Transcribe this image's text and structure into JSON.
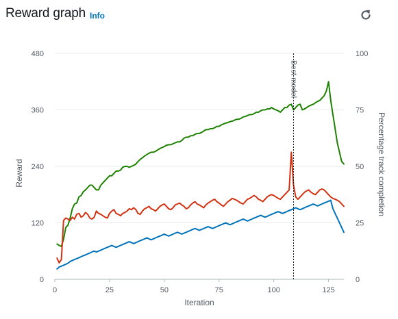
{
  "header": {
    "title": "Reward graph",
    "info_label": "Info",
    "refresh_icon": "refresh-icon"
  },
  "chart_data": {
    "type": "line",
    "xlabel": "Iteration",
    "ylabel_left": "Reward",
    "ylabel_right": "Percentage track completion",
    "x_ticks": [
      "0",
      "25",
      "50",
      "75",
      "100",
      "125"
    ],
    "y_left_ticks": [
      "0",
      "120",
      "240",
      "360",
      "480"
    ],
    "y_right_ticks": [
      "0",
      "25",
      "50",
      "75",
      "100"
    ],
    "xlim": [
      0,
      132
    ],
    "ylim_left": [
      0,
      480
    ],
    "ylim_right": [
      0,
      100
    ],
    "best_model_iteration": 109,
    "best_model_label": "Best model",
    "colors": {
      "green": "#1d8102",
      "red": "#d13212",
      "blue": "#0073bb",
      "grid": "#eaeded",
      "axis_text": "#545b64"
    },
    "series": [
      {
        "color": "green",
        "axis": "left",
        "values": [
          75,
          72,
          70,
          85,
          110,
          115,
          130,
          150,
          160,
          162,
          175,
          178,
          186,
          190,
          195,
          200,
          200,
          195,
          190,
          190,
          200,
          205,
          210,
          215,
          220,
          220,
          225,
          230,
          230,
          232,
          238,
          240,
          240,
          238,
          240,
          242,
          245,
          250,
          255,
          258,
          262,
          265,
          268,
          270,
          270,
          272,
          275,
          278,
          280,
          282,
          285,
          286,
          286,
          288,
          290,
          292,
          292,
          295,
          300,
          302,
          302,
          305,
          305,
          308,
          310,
          310,
          312,
          315,
          318,
          318,
          320,
          320,
          322,
          325,
          325,
          328,
          330,
          332,
          333,
          335,
          336,
          338,
          340,
          340,
          342,
          345,
          346,
          348,
          350,
          350,
          352,
          355,
          355,
          358,
          360,
          360,
          362,
          362,
          365,
          362,
          360,
          358,
          355,
          360,
          365,
          365,
          370,
          372,
          360,
          365,
          370,
          372,
          360,
          362,
          365,
          368,
          370,
          372,
          375,
          378,
          380,
          385,
          390,
          400,
          420,
          380,
          350,
          320,
          290,
          270,
          250,
          245
        ]
      },
      {
        "color": "red",
        "axis": "left",
        "values": [
          45,
          35,
          42,
          125,
          130,
          128,
          125,
          132,
          128,
          138,
          140,
          132,
          135,
          142,
          138,
          130,
          128,
          132,
          145,
          140,
          138,
          135,
          132,
          130,
          140,
          145,
          148,
          140,
          138,
          135,
          140,
          142,
          145,
          150,
          148,
          152,
          148,
          140,
          138,
          145,
          150,
          152,
          155,
          150,
          148,
          145,
          150,
          155,
          158,
          160,
          155,
          150,
          148,
          152,
          158,
          160,
          162,
          158,
          155,
          150,
          152,
          158,
          162,
          165,
          160,
          158,
          155,
          152,
          158,
          162,
          165,
          168,
          170,
          165,
          162,
          158,
          155,
          160,
          165,
          168,
          172,
          170,
          168,
          165,
          162,
          160,
          165,
          170,
          172,
          175,
          178,
          175,
          170,
          168,
          165,
          170,
          175,
          178,
          180,
          178,
          175,
          172,
          170,
          175,
          180,
          185,
          190,
          270,
          200,
          175,
          170,
          175,
          180,
          185,
          188,
          190,
          185,
          182,
          180,
          185,
          190,
          192,
          190,
          185,
          180,
          175,
          172,
          170,
          168,
          165,
          160,
          155
        ]
      },
      {
        "color": "blue",
        "axis": "left",
        "values": [
          22,
          26,
          28,
          30,
          32,
          34,
          38,
          40,
          42,
          44,
          46,
          48,
          50,
          52,
          54,
          56,
          58,
          60,
          58,
          60,
          62,
          64,
          66,
          68,
          70,
          72,
          70,
          68,
          70,
          72,
          74,
          76,
          78,
          80,
          78,
          76,
          78,
          80,
          82,
          84,
          86,
          88,
          86,
          84,
          86,
          88,
          90,
          92,
          94,
          96,
          94,
          92,
          94,
          96,
          98,
          100,
          98,
          96,
          98,
          100,
          102,
          104,
          106,
          108,
          106,
          104,
          106,
          108,
          110,
          112,
          110,
          108,
          110,
          112,
          114,
          116,
          118,
          120,
          118,
          116,
          118,
          120,
          122,
          124,
          126,
          128,
          126,
          124,
          126,
          128,
          130,
          132,
          134,
          136,
          134,
          132,
          134,
          136,
          138,
          140,
          142,
          144,
          142,
          140,
          142,
          144,
          146,
          148,
          150,
          152,
          150,
          148,
          150,
          152,
          154,
          156,
          158,
          160,
          158,
          156,
          158,
          160,
          162,
          164,
          166,
          168,
          150,
          140,
          130,
          120,
          110,
          100
        ]
      }
    ]
  }
}
